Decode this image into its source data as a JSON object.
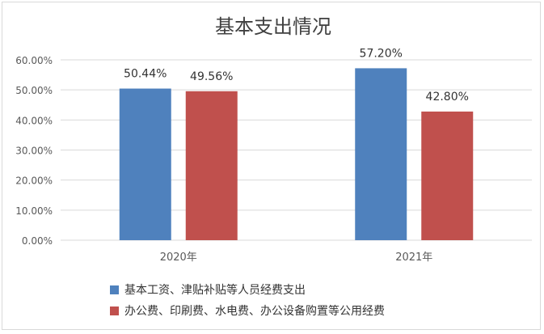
{
  "chart_data": {
    "type": "bar",
    "title": "基本支出情况",
    "xlabel": "",
    "ylabel": "",
    "categories": [
      "2020年",
      "2021年"
    ],
    "series": [
      {
        "name": "基本工资、津贴补贴等人员经费支出",
        "values": [
          50.44,
          57.2
        ],
        "labels": [
          "50.44%",
          "57.20%"
        ],
        "color": "#4f81bd"
      },
      {
        "name": "办公费、印刷费、水电费、办公设备购置等公用经费",
        "values": [
          49.56,
          42.8
        ],
        "labels": [
          "49.56%",
          "42.80%"
        ],
        "color": "#c0504d"
      }
    ],
    "ylim": [
      0,
      60
    ],
    "yticks": [
      "0.00%",
      "10.00%",
      "20.00%",
      "30.00%",
      "40.00%",
      "50.00%",
      "60.00%"
    ],
    "grid": true,
    "legend_position": "bottom"
  }
}
